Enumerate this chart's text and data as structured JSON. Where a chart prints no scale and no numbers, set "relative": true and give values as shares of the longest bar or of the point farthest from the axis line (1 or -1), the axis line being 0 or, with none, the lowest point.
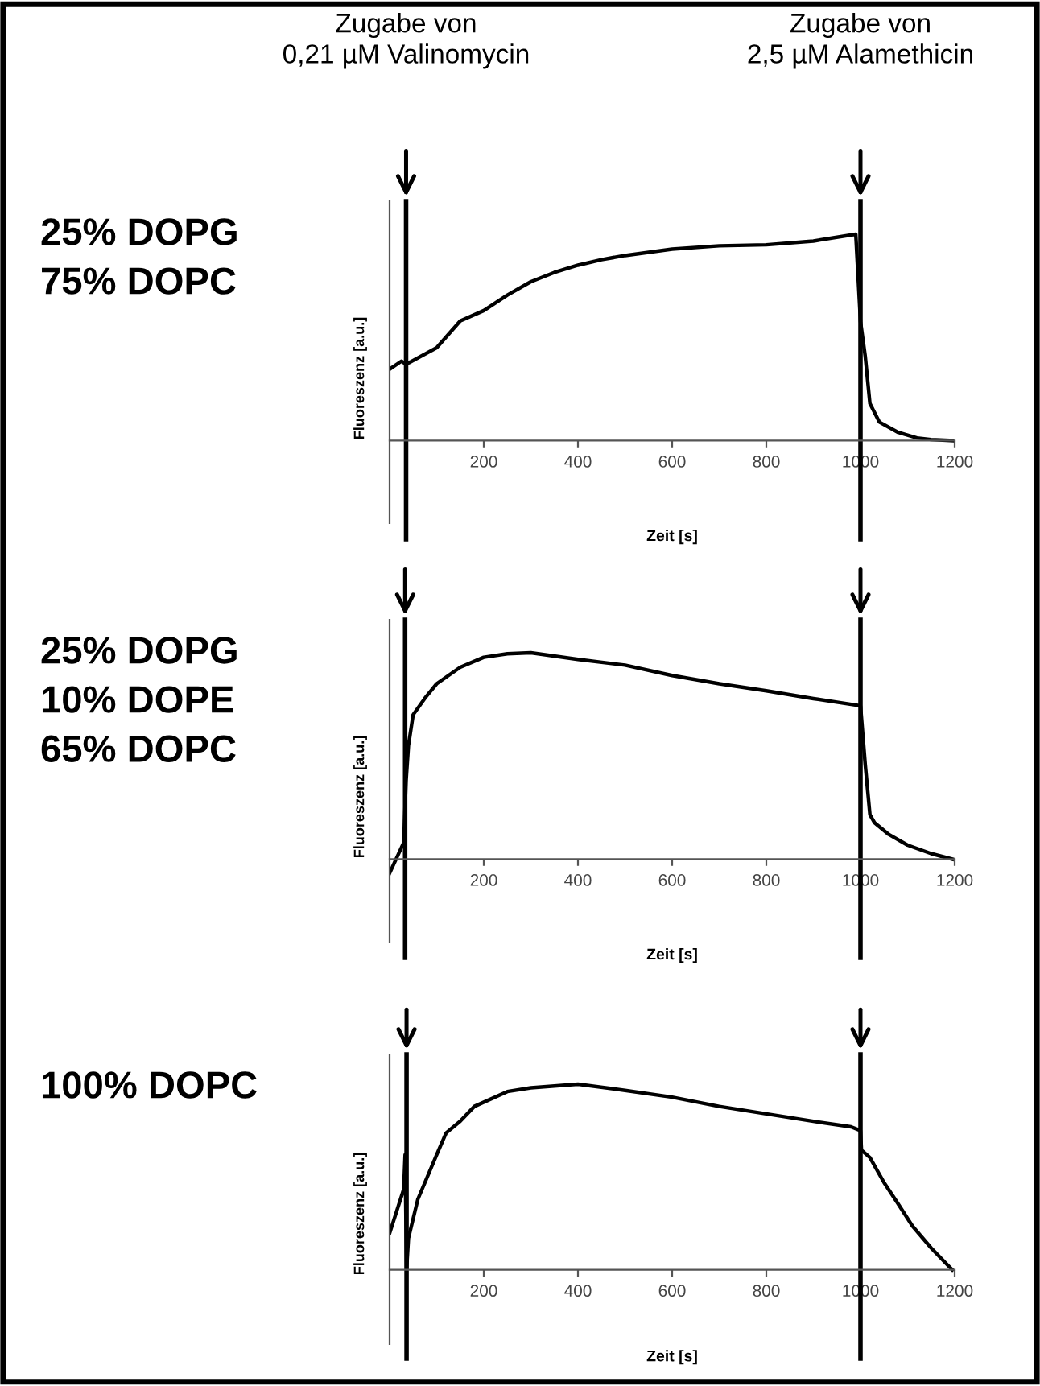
{
  "chart_data": [
    {
      "type": "line",
      "title": "25% DOPG\n75% DOPC",
      "xlabel": "Zeit [s]",
      "ylabel": "Fluoreszenz [a.u.]",
      "relative": true,
      "xlim": [
        0,
        1200
      ],
      "xticks": [
        200,
        400,
        600,
        800,
        1000,
        1200
      ],
      "annotations": [
        "Zugabe von\n0,21 µM Valinomycin",
        "Zugabe von\n2,5 µM Alamethicin"
      ],
      "ref_lines": [
        {
          "axis": "x",
          "value": 35,
          "color": "#000000"
        },
        {
          "axis": "x",
          "value": 1000,
          "color": "#000000"
        }
      ],
      "series": [
        {
          "color": "#000000",
          "x": [
            0,
            25,
            35,
            100,
            150,
            200,
            250,
            300,
            350,
            400,
            450,
            500,
            600,
            700,
            800,
            900,
            990,
            1000,
            1010,
            1020,
            1040,
            1080,
            1120,
            1150,
            1195
          ],
          "values": [
            0.346,
            0.385,
            0.37,
            0.45,
            0.58,
            0.63,
            0.705,
            0.77,
            0.815,
            0.85,
            0.877,
            0.897,
            0.928,
            0.944,
            0.949,
            0.967,
            1.0,
            0.577,
            0.41,
            0.18,
            0.09,
            0.04,
            0.013,
            0.005,
            0
          ]
        }
      ]
    },
    {
      "type": "line",
      "title": "25% DOPG\n10% DOPE\n65% DOPC",
      "xlabel": "Zeit [s]",
      "ylabel": "Fluoreszenz [a.u.]",
      "relative": true,
      "xlim": [
        0,
        1200
      ],
      "xticks": [
        200,
        400,
        600,
        800,
        1000,
        1200
      ],
      "ref_lines": [
        {
          "axis": "x",
          "value": 33,
          "color": "#000000"
        },
        {
          "axis": "x",
          "value": 1000,
          "color": "#000000"
        }
      ],
      "series": [
        {
          "color": "#000000",
          "x": [
            0,
            30,
            35,
            40,
            50,
            75,
            100,
            150,
            200,
            250,
            300,
            400,
            500,
            600,
            700,
            800,
            900,
            1000,
            1010,
            1020,
            1030,
            1060,
            1100,
            1150,
            1195
          ],
          "values": [
            -0.068,
            0.08,
            0.38,
            0.55,
            0.7,
            0.78,
            0.85,
            0.93,
            0.978,
            0.995,
            1.0,
            0.968,
            0.94,
            0.89,
            0.85,
            0.816,
            0.778,
            0.743,
            0.46,
            0.216,
            0.176,
            0.12,
            0.068,
            0.027,
            0
          ]
        }
      ]
    },
    {
      "type": "line",
      "title": "100% DOPC",
      "xlabel": "Zeit [s]",
      "ylabel": "Fluoreszenz [a.u.]",
      "relative": true,
      "xlim": [
        0,
        1200
      ],
      "xticks": [
        200,
        400,
        600,
        800,
        1000,
        1200
      ],
      "ref_lines": [
        {
          "axis": "x",
          "value": 36,
          "color": "#000000"
        },
        {
          "axis": "x",
          "value": 1000,
          "color": "#000000"
        }
      ],
      "series": [
        {
          "color": "#000000",
          "x": [
            0,
            30,
            33,
            36,
            40,
            60,
            100,
            120,
            150,
            180,
            250,
            300,
            400,
            500,
            600,
            700,
            800,
            900,
            980,
            1000,
            1002,
            1020,
            1050,
            1080,
            1110,
            1150,
            1185,
            1195
          ],
          "values": [
            0.197,
            0.434,
            0.62,
            0.0,
            0.17,
            0.38,
            0.62,
            0.737,
            0.8,
            0.88,
            0.96,
            0.98,
            1.0,
            0.966,
            0.93,
            0.88,
            0.84,
            0.8,
            0.77,
            0.75,
            0.645,
            0.605,
            0.47,
            0.355,
            0.237,
            0.118,
            0.026,
            0
          ]
        }
      ]
    }
  ]
}
